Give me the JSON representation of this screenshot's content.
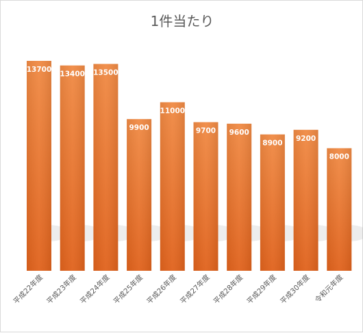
{
  "chart_data": {
    "type": "bar",
    "title": "1件当たり",
    "categories": [
      "平成22年度",
      "平成23年度",
      "平成24年度",
      "平成25年度",
      "平成26年度",
      "平成27年度",
      "平成28年度",
      "平成29年度",
      "平成30年度",
      "令和元年度"
    ],
    "values": [
      13700,
      13400,
      13500,
      9900,
      11000,
      9700,
      9600,
      8900,
      9200,
      8000
    ],
    "xlabel": "",
    "ylabel": "",
    "ylim": [
      0,
      14000
    ],
    "grid": false,
    "legend": "none",
    "bar_color": "#ed7d31",
    "data_labels": true
  }
}
